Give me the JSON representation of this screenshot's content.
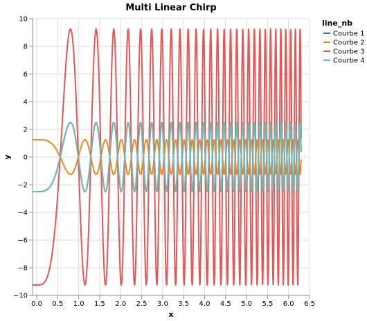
{
  "chart_data": {
    "type": "line",
    "title": "Multi Linear Chirp",
    "xlabel": "x",
    "ylabel": "y",
    "xlim": [
      -0.1,
      6.5
    ],
    "ylim": [
      -10,
      10
    ],
    "x_ticks": [
      0.0,
      0.5,
      1.0,
      1.5,
      2.0,
      2.5,
      3.0,
      3.5,
      4.0,
      4.5,
      5.0,
      5.5,
      6.0,
      6.5
    ],
    "x_tick_labels": [
      "0.0",
      "0.5",
      "1.0",
      "1.5",
      "2.0",
      "2.5",
      "3.0",
      "3.5",
      "4.0",
      "4.5",
      "5.0",
      "5.5",
      "6.0",
      "6.5"
    ],
    "y_ticks": [
      -10,
      -8,
      -6,
      -4,
      -2,
      0,
      2,
      4,
      6,
      8,
      10
    ],
    "y_tick_labels": [
      "−10",
      "−8",
      "−6",
      "−4",
      "−2",
      "0",
      "2",
      "4",
      "6",
      "8",
      "10"
    ],
    "grid": true,
    "legend": {
      "title": "line_nb",
      "placement": "right"
    },
    "x_range": [
      -0.1,
      6.3
    ],
    "series": [
      {
        "name": "Courbe 1",
        "color": "#4c78a8",
        "amplitude": -2.5,
        "phase_coeffs": [
          0,
          0.3,
          4.5
        ]
      },
      {
        "name": "Courbe 2",
        "color": "#f58518",
        "amplitude": 1.25,
        "phase_coeffs": [
          0,
          0.3,
          4.5
        ]
      },
      {
        "name": "Courbe 3",
        "color": "#e45756",
        "amplitude": -9.25,
        "phase_coeffs": [
          0,
          0.3,
          4.5
        ]
      },
      {
        "name": "Courbe 4",
        "color": "#72b7b2",
        "amplitude": -2.5,
        "phase_coeffs": [
          0,
          0.3,
          4.5
        ]
      }
    ]
  }
}
